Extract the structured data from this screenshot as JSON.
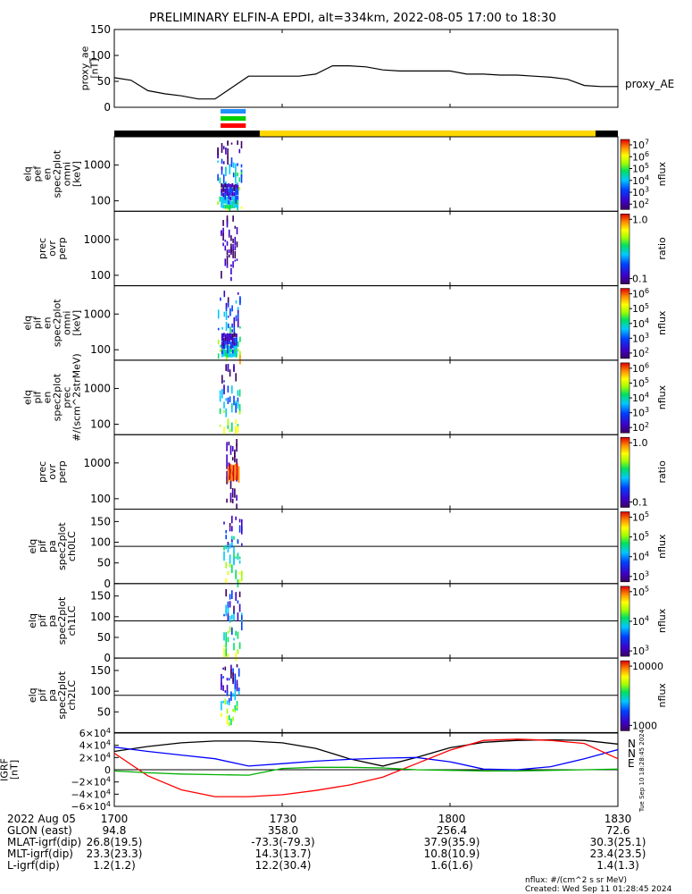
{
  "chart_data": {
    "type": "spectrogram",
    "title": "PRELIMINARY ELFIN-A EPDI, alt=334km, 2022-08-05 17:00 to 18:30",
    "time_axis": {
      "date_label": "2022 Aug 05",
      "ticks": [
        "1700",
        "1730",
        "1800",
        "1830"
      ],
      "start": "17:00",
      "end": "18:30"
    },
    "orbit_rows": [
      {
        "label": "GLON (east)",
        "values": [
          "94.8",
          "358.0",
          "256.4",
          "72.6"
        ]
      },
      {
        "label": "MLAT-igrf(dip)",
        "values": [
          "26.8(19.5)",
          "-73.3(-79.3)",
          "37.9(35.9)",
          "30.3(25.1)"
        ]
      },
      {
        "label": "MLT-igrf(dip)",
        "values": [
          "23.3(23.3)",
          "14.3(13.7)",
          "10.8(10.9)",
          "23.4(23.5)"
        ]
      },
      {
        "label": "L-igrf(dip)",
        "values": [
          "1.2(1.2)",
          "12.2(30.4)",
          "1.6(1.6)",
          "1.4(1.3)"
        ]
      }
    ],
    "footer": {
      "units": "nflux: #/(cm^2 s sr MeV)",
      "created": "Created: Wed Sep 11 01:28:45 2024",
      "stamp": "Tue Sep 10 18:28:45 2024"
    },
    "proxy_ae": {
      "ylabel": "proxy_ae\n[nT]",
      "legend": "proxy_AE",
      "yticks": [
        "150",
        "100",
        "50",
        "0"
      ],
      "ylim": [
        0,
        150
      ],
      "x_min": [
        0,
        3,
        6,
        9,
        12,
        15,
        18,
        21,
        24,
        27,
        30,
        33,
        36,
        39,
        42,
        45,
        48,
        51,
        54,
        57,
        60,
        63,
        66,
        69,
        72,
        75,
        78,
        81,
        84,
        87,
        90
      ],
      "values": [
        57,
        52,
        32,
        26,
        22,
        16,
        16,
        38,
        60,
        60,
        60,
        60,
        64,
        80,
        80,
        78,
        72,
        70,
        70,
        70,
        70,
        64,
        64,
        62,
        62,
        60,
        58,
        54,
        42,
        40,
        40
      ]
    },
    "science_bars": [
      {
        "color": "#1e90ff"
      },
      {
        "color": "#00d000"
      },
      {
        "color": "#ff0000"
      }
    ],
    "illumination_bar": [
      {
        "start_min": 0,
        "end_min": 26,
        "color": "#000000"
      },
      {
        "start_min": 26,
        "end_min": 86,
        "color": "#ffd700"
      },
      {
        "start_min": 86,
        "end_min": 90,
        "color": "#000000"
      }
    ],
    "panels": [
      {
        "id": "p1",
        "ylabel": "elq\npef\nen\nspec2plot\nomni\n[keV]",
        "yticks": [
          "1000",
          "100"
        ],
        "cbar": "rainbow",
        "cbar_ticks": [
          "10^7",
          "10^6",
          "10^5",
          "10^4",
          "10^3",
          "10^2"
        ],
        "cbar_label": "nflux",
        "event": {
          "start_min": 18.4,
          "end_min": 23.0
        }
      },
      {
        "id": "p2",
        "ylabel": "prec\novr\nperp",
        "yticks": [
          "1000",
          "100"
        ],
        "cbar": "rainbow",
        "cbar_ticks": [
          "1.0",
          "0.1"
        ],
        "cbar_label": "ratio",
        "event": {
          "start_min": 19.0,
          "end_min": 22.0
        }
      },
      {
        "id": "p3",
        "ylabel": "elq\npif\nen\nspec2plot\nomni\n[keV]",
        "yticks": [
          "1000",
          "100"
        ],
        "cbar": "rainbow",
        "cbar_ticks": [
          "10^6",
          "10^5",
          "10^4",
          "10^3",
          "10^2"
        ],
        "cbar_label": "nflux",
        "event": {
          "start_min": 18.5,
          "end_min": 22.8
        }
      },
      {
        "id": "p4",
        "ylabel": "elq\npif\nen\nspec2plot\nprec\n#/(scm^2strMeV)",
        "yticks": [
          "1000",
          "100"
        ],
        "cbar": "rainbow",
        "cbar_ticks": [
          "10^6",
          "10^5",
          "10^4",
          "10^3",
          "10^2"
        ],
        "cbar_label": "nflux",
        "event": {
          "start_min": 18.8,
          "end_min": 22.5
        }
      },
      {
        "id": "p5",
        "ylabel": "prec\novr\nperp",
        "yticks": [
          "1000",
          "100"
        ],
        "cbar": "rainbow",
        "cbar_ticks": [
          "1.0",
          "0.1"
        ],
        "cbar_label": "ratio",
        "event": {
          "start_min": 20.0,
          "end_min": 22.0
        }
      },
      {
        "id": "p6",
        "ylabel": "elq\npif\npa\nspec2plot\nch0LC",
        "yticks": [
          "150",
          "100",
          "50",
          "0"
        ],
        "cbar": "rainbow",
        "cbar_ticks": [
          "10^5",
          "10^5",
          "10^4",
          "10^3"
        ],
        "cbar_label": "nflux",
        "event": {
          "start_min": 19.5,
          "end_min": 23.0
        }
      },
      {
        "id": "p7",
        "ylabel": "elq\npif\npa\nspec2plot\nch1LC",
        "yticks": [
          "150",
          "100",
          "50",
          "0"
        ],
        "cbar": "rainbow",
        "cbar_ticks": [
          "10^5",
          "10^4",
          "10^3"
        ],
        "cbar_label": "nflux",
        "event": {
          "start_min": 19.5,
          "end_min": 23.0
        }
      },
      {
        "id": "p8",
        "ylabel": "elq\npif\npa\nspec2plot\nch2LC",
        "yticks": [
          "150",
          "100",
          "50"
        ],
        "cbar": "rainbow",
        "cbar_ticks": [
          "10000",
          "1000"
        ],
        "cbar_label": "nflux",
        "event": {
          "start_min": 19.0,
          "end_min": 22.5
        }
      }
    ],
    "igrf": {
      "ylabel": "IGRF\n[nT]",
      "yticks": [
        "6×10^4",
        "4×10^4",
        "2×10^4",
        "0",
        "−2×10^4",
        "−4×10^4",
        "−6×10^4"
      ],
      "ylim": [
        -60000,
        60000
      ],
      "labels": [
        {
          "text": "N",
          "color": "#ff0000"
        },
        {
          "text": "N",
          "color": "#0000ff"
        },
        {
          "text": "E",
          "color": "#00c000"
        }
      ],
      "x_min": [
        0,
        6,
        12,
        18,
        24,
        30,
        36,
        42,
        48,
        54,
        60,
        66,
        72,
        78,
        84,
        90
      ],
      "series": [
        {
          "color": "#000000",
          "values": [
            30000,
            38000,
            44000,
            47000,
            47000,
            44000,
            35000,
            18000,
            6000,
            20000,
            36000,
            45000,
            48000,
            49000,
            48000,
            42000
          ]
        },
        {
          "color": "#0000ff",
          "values": [
            37000,
            30000,
            24000,
            18000,
            6000,
            10000,
            14000,
            17000,
            19000,
            20000,
            13000,
            1000,
            0,
            5000,
            18000,
            33000
          ]
        },
        {
          "color": "#ff0000",
          "values": [
            27000,
            -10000,
            -33000,
            -44000,
            -44000,
            -41000,
            -34000,
            -25000,
            -12000,
            10000,
            32000,
            48000,
            50000,
            48000,
            43000,
            18000
          ]
        },
        {
          "color": "#00b000",
          "values": [
            -2000,
            -5000,
            -7000,
            -8000,
            -9000,
            2000,
            4000,
            4000,
            3000,
            0,
            -1000,
            -2000,
            -2000,
            -1000,
            0,
            1000
          ]
        }
      ]
    }
  }
}
